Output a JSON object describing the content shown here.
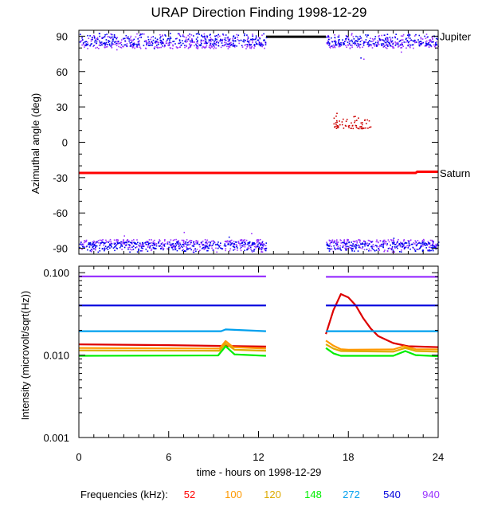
{
  "chart_data": [
    {
      "type": "scatter",
      "title": "URAP Direction Finding  1998-12-29",
      "ylabel": "Azimuthal angle (deg)",
      "xlim": [
        0,
        24
      ],
      "ylim": [
        -95,
        95
      ],
      "yticks": [
        "90",
        "60",
        "30",
        "0",
        "-30",
        "-60",
        "-90"
      ],
      "grid": false,
      "right_labels": [
        {
          "text": "Jupiter",
          "y": 90
        },
        {
          "text": "Saturn",
          "y": -26
        }
      ],
      "series": [
        {
          "name": "Jupiter",
          "color": "#000000",
          "style": "line",
          "points": [
            [
              12.5,
              89.5
            ],
            [
              16.5,
              89.5
            ]
          ]
        },
        {
          "name": "Saturn",
          "color": "#ff0000",
          "style": "line",
          "points": [
            [
              0,
              -26
            ],
            [
              22.5,
              -26
            ],
            [
              22.6,
              -25
            ],
            [
              24,
              -25
            ]
          ]
        },
        {
          "name": "940 near +90",
          "color": "#9933ff",
          "style": "band",
          "x_ranges": [
            [
              0,
              12.5
            ],
            [
              16.5,
              24
            ]
          ],
          "y_range": [
            80,
            93
          ],
          "outliers": [
            [
              19,
              71
            ],
            [
              2.5,
              79
            ],
            [
              21.5,
              77
            ]
          ]
        },
        {
          "name": "540 near +90",
          "color": "#0000ee",
          "style": "band",
          "x_ranges": [
            [
              0,
              12.5
            ],
            [
              16.5,
              24
            ]
          ],
          "y_range": [
            82,
            93
          ],
          "outliers": [
            [
              5,
              80
            ],
            [
              18.8,
              72
            ]
          ]
        },
        {
          "name": "52 cluster",
          "color": "#cc0000",
          "style": "band",
          "x_ranges": [
            [
              17,
              19.5
            ]
          ],
          "y_range": [
            12,
            23
          ],
          "outliers": [
            [
              17.2,
              25
            ]
          ]
        },
        {
          "name": "940 near -90",
          "color": "#9933ff",
          "style": "band",
          "x_ranges": [
            [
              0,
              12.5
            ],
            [
              16.5,
              24
            ]
          ],
          "y_range": [
            -93,
            -82
          ],
          "outliers": [
            [
              7,
              -76
            ],
            [
              11.5,
              -77
            ],
            [
              3,
              -79
            ]
          ]
        },
        {
          "name": "540 near -90",
          "color": "#0000ee",
          "style": "band",
          "x_ranges": [
            [
              0,
              12.5
            ],
            [
              16.5,
              24
            ]
          ],
          "y_range": [
            -93,
            -84
          ],
          "outliers": [
            [
              10,
              -80
            ],
            [
              21,
              -81
            ]
          ]
        }
      ]
    },
    {
      "type": "line",
      "xlabel": "time - hours on 1998-12-29",
      "ylabel": "Intensity (microvolt/sqrt(Hz))",
      "xlim": [
        0,
        24
      ],
      "ylim": [
        0.001,
        0.12
      ],
      "yscale": "log",
      "xticks": [
        "0",
        "6",
        "12",
        "18",
        "24"
      ],
      "yticks": [
        "0.100",
        "0.010",
        "0.001"
      ],
      "grid": false,
      "series": [
        {
          "name": "52",
          "color": "#dd0000",
          "points": [
            [
              0,
              0.0135
            ],
            [
              6,
              0.0132
            ],
            [
              12.5,
              0.0127
            ],
            null,
            [
              16.5,
              0.018
            ],
            [
              17,
              0.035
            ],
            [
              17.5,
              0.055
            ],
            [
              18,
              0.05
            ],
            [
              18.5,
              0.04
            ],
            [
              19,
              0.028
            ],
            [
              19.5,
              0.021
            ],
            [
              20,
              0.017
            ],
            [
              21,
              0.014
            ],
            [
              22,
              0.0128
            ],
            [
              24,
              0.0125
            ]
          ]
        },
        {
          "name": "100",
          "color": "#ff9900",
          "points": [
            [
              0,
              0.0122
            ],
            [
              9.4,
              0.012
            ],
            [
              9.8,
              0.0148
            ],
            [
              10.3,
              0.0125
            ],
            [
              12.5,
              0.012
            ],
            null,
            [
              16.5,
              0.015
            ],
            [
              17,
              0.013
            ],
            [
              17.5,
              0.0118
            ],
            [
              18,
              0.0116
            ],
            [
              21,
              0.0117
            ],
            [
              21.7,
              0.0128
            ],
            [
              22.5,
              0.0118
            ],
            [
              24,
              0.0117
            ]
          ]
        },
        {
          "name": "120",
          "color": "#ddaa00",
          "points": [
            [
              0,
              0.0114
            ],
            [
              9.4,
              0.0113
            ],
            [
              9.8,
              0.0138
            ],
            [
              10.4,
              0.0116
            ],
            [
              12.5,
              0.0113
            ],
            null,
            [
              16.5,
              0.0135
            ],
            [
              17,
              0.012
            ],
            [
              17.5,
              0.0112
            ],
            [
              21,
              0.011
            ],
            [
              21.8,
              0.0122
            ],
            [
              22.5,
              0.0112
            ],
            [
              24,
              0.011
            ]
          ]
        },
        {
          "name": "148",
          "color": "#00ee00",
          "points": [
            [
              0,
              0.0098
            ],
            [
              9.3,
              0.0099
            ],
            [
              9.8,
              0.0128
            ],
            [
              10.4,
              0.0102
            ],
            [
              12.5,
              0.0098
            ],
            null,
            [
              16.5,
              0.0122
            ],
            [
              17,
              0.0105
            ],
            [
              17.5,
              0.0098
            ],
            [
              21,
              0.0098
            ],
            [
              21.8,
              0.0112
            ],
            [
              22.5,
              0.01
            ],
            [
              24,
              0.0097
            ]
          ]
        },
        {
          "name": "272",
          "color": "#00a0ee",
          "points": [
            [
              0,
              0.0195
            ],
            [
              9.5,
              0.0195
            ],
            [
              9.8,
              0.0205
            ],
            [
              12.5,
              0.0195
            ],
            null,
            [
              16.5,
              0.0195
            ],
            [
              24,
              0.0195
            ]
          ]
        },
        {
          "name": "540",
          "color": "#0000dd",
          "points": [
            [
              0,
              0.04
            ],
            [
              12.5,
              0.04
            ],
            null,
            [
              16.5,
              0.04
            ],
            [
              24,
              0.04
            ]
          ]
        },
        {
          "name": "940",
          "color": "#9933ff",
          "points": [
            [
              0,
              0.09
            ],
            [
              12.5,
              0.09
            ],
            null,
            [
              16.5,
              0.089
            ],
            [
              24,
              0.089
            ]
          ]
        }
      ]
    }
  ],
  "legend": {
    "label": "Frequencies (kHz):",
    "items": [
      {
        "text": "52",
        "color": "#ff0000"
      },
      {
        "text": "100",
        "color": "#ff9900"
      },
      {
        "text": "120",
        "color": "#ddaa00"
      },
      {
        "text": "148",
        "color": "#00ee00"
      },
      {
        "text": "272",
        "color": "#00a0ee"
      },
      {
        "text": "540",
        "color": "#0000dd"
      },
      {
        "text": "940",
        "color": "#9933ff"
      }
    ]
  }
}
